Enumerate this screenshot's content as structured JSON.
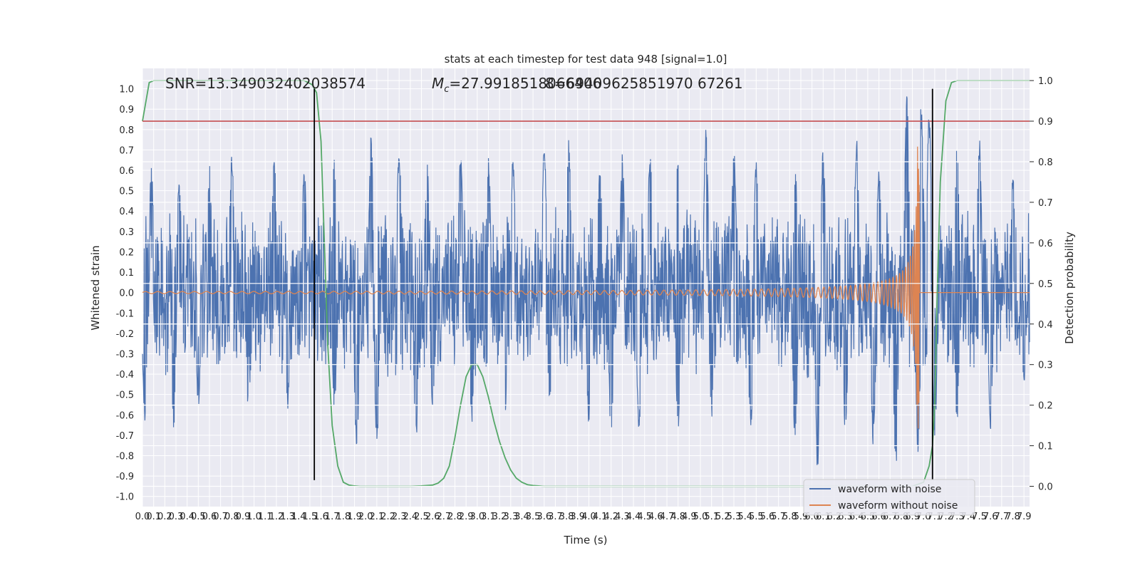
{
  "chart_data": {
    "type": "line",
    "title": "stats at each timestep for test data 948 [signal=1.0]",
    "xlabel": "Time (s)",
    "ylabel": "Whitened strain",
    "y2label": "Detection probability",
    "xlim": [
      0.0,
      7.95
    ],
    "ylim": [
      -1.05,
      1.1
    ],
    "y2lim": [
      -0.05,
      1.03
    ],
    "grid": true,
    "background": "#eaeaf2",
    "x_tick_labels": [
      "0.0",
      "0.1",
      "0.2",
      "0.3",
      "0.4",
      "0.5",
      "0.6",
      "0.7",
      "0.8",
      "0.9",
      "1.0",
      "1.1",
      "1.2",
      "1.3",
      "1.4",
      "1.5",
      "1.6",
      "1.7",
      "1.8",
      "1.9",
      "2.0",
      "2.1",
      "2.2",
      "2.3",
      "2.4",
      "2.5",
      "2.6",
      "2.7",
      "2.8",
      "2.9",
      "3.0",
      "3.1",
      "3.2",
      "3.3",
      "3.4",
      "3.5",
      "3.6",
      "3.7",
      "3.8",
      "3.9",
      "4.0",
      "4.1",
      "4.2",
      "4.3",
      "4.4",
      "4.5",
      "4.6",
      "4.7",
      "4.8",
      "4.9",
      "5.0",
      "5.1",
      "5.2",
      "5.3",
      "5.4",
      "5.5",
      "5.6",
      "5.7",
      "5.8",
      "5.9",
      "6.0",
      "6.1",
      "6.2",
      "6.3",
      "6.4",
      "6.5",
      "6.6",
      "6.7",
      "6.8",
      "6.9",
      "7.0",
      "7.1",
      "7.2",
      "7.3",
      "7.4",
      "7.5",
      "7.6",
      "7.7",
      "7.8",
      "7.9"
    ],
    "y_tick_labels": [
      "-1.0",
      "-0.9",
      "-0.8",
      "-0.7",
      "-0.6",
      "-0.5",
      "-0.4",
      "-0.3",
      "-0.2",
      "-0.1",
      "0.0",
      "0.1",
      "0.2",
      "0.3",
      "0.4",
      "0.5",
      "0.6",
      "0.7",
      "0.8",
      "0.9",
      "1.0"
    ],
    "y_tick_values": [
      -1.0,
      -0.9,
      -0.8,
      -0.7,
      -0.6,
      -0.5,
      -0.4,
      -0.3,
      -0.2,
      -0.1,
      0.0,
      0.1,
      0.2,
      0.3,
      0.4,
      0.5,
      0.6,
      0.7,
      0.8,
      0.9,
      1.0
    ],
    "y2_tick_labels": [
      "0.0",
      "0.1",
      "0.2",
      "0.3",
      "0.4",
      "0.5",
      "0.6",
      "0.7",
      "0.8",
      "0.9",
      "1.0"
    ],
    "y2_tick_values": [
      0.0,
      0.1,
      0.2,
      0.3,
      0.4,
      0.5,
      0.6,
      0.7,
      0.8,
      0.9,
      1.0
    ],
    "annotations": {
      "snr": "SNR=13.349032402038574",
      "mc_symbol": "M",
      "mc_subscript": "c",
      "mc_value": "=27.9918518066406",
      "overlap_value": "8=69409625851970 67261"
    },
    "series": [
      {
        "name": "waveform with noise",
        "color": "#4c72b0",
        "axis": "left",
        "description_stats": {
          "x_range": [
            0.0,
            7.95
          ],
          "typical_band": [
            -0.35,
            0.42
          ],
          "max_peak": 1.0,
          "min_trough": -0.92
        },
        "peaks": [
          [
            0.08,
            0.62
          ],
          [
            0.33,
            0.58
          ],
          [
            0.6,
            0.63
          ],
          [
            0.8,
            0.69
          ],
          [
            1.18,
            0.68
          ],
          [
            1.45,
            0.62
          ],
          [
            1.72,
            0.67
          ],
          [
            2.05,
            0.79
          ],
          [
            2.3,
            0.72
          ],
          [
            2.55,
            0.66
          ],
          [
            2.85,
            0.72
          ],
          [
            3.1,
            0.7
          ],
          [
            3.32,
            0.68
          ],
          [
            3.6,
            0.75
          ],
          [
            3.82,
            0.76
          ],
          [
            4.1,
            0.66
          ],
          [
            4.3,
            0.72
          ],
          [
            4.55,
            0.72
          ],
          [
            4.8,
            0.69
          ],
          [
            5.05,
            0.83
          ],
          [
            5.3,
            0.72
          ],
          [
            5.5,
            0.65
          ],
          [
            5.85,
            0.62
          ],
          [
            6.1,
            0.72
          ],
          [
            6.4,
            0.76
          ],
          [
            6.6,
            0.62
          ],
          [
            6.85,
            1.0
          ],
          [
            6.98,
            0.95
          ],
          [
            7.05,
            0.89
          ],
          [
            7.3,
            0.73
          ],
          [
            7.5,
            0.77
          ],
          [
            7.8,
            0.6
          ]
        ],
        "troughs": [
          [
            0.02,
            -0.64
          ],
          [
            0.28,
            -0.67
          ],
          [
            0.5,
            -0.58
          ],
          [
            0.95,
            -0.6
          ],
          [
            1.3,
            -0.58
          ],
          [
            1.72,
            -0.58
          ],
          [
            1.92,
            -0.83
          ],
          [
            2.1,
            -0.79
          ],
          [
            2.45,
            -0.77
          ],
          [
            2.6,
            -0.6
          ],
          [
            2.95,
            -0.68
          ],
          [
            3.25,
            -0.62
          ],
          [
            3.65,
            -0.58
          ],
          [
            4.0,
            -0.66
          ],
          [
            4.2,
            -0.75
          ],
          [
            4.45,
            -0.7
          ],
          [
            4.8,
            -0.7
          ],
          [
            5.1,
            -0.62
          ],
          [
            5.45,
            -0.7
          ],
          [
            5.85,
            -0.79
          ],
          [
            6.05,
            -0.89
          ],
          [
            6.3,
            -0.72
          ],
          [
            6.55,
            -0.76
          ],
          [
            6.75,
            -0.91
          ],
          [
            6.95,
            -0.82
          ],
          [
            7.1,
            -0.73
          ],
          [
            7.3,
            -0.65
          ],
          [
            7.6,
            -0.69
          ],
          [
            7.9,
            -0.45
          ]
        ]
      },
      {
        "name": "waveform without noise",
        "color": "#dd8452",
        "axis": "left",
        "chirp": {
          "start": 0.0,
          "end": 6.96,
          "start_amplitude": 0.005,
          "peak_amplitude": 0.72,
          "start_frequency": 9.0,
          "end_frequency": 300.0
        }
      },
      {
        "name": "detection probability",
        "color": "#55a868",
        "axis": "right",
        "x": [
          0.0,
          0.06,
          0.1,
          0.2,
          0.5,
          1.0,
          1.3,
          1.45,
          1.52,
          1.56,
          1.6,
          1.63,
          1.66,
          1.7,
          1.75,
          1.8,
          1.85,
          1.9,
          1.95,
          2.0,
          2.2,
          2.4,
          2.5,
          2.6,
          2.65,
          2.7,
          2.75,
          2.8,
          2.85,
          2.9,
          2.95,
          3.0,
          3.05,
          3.1,
          3.15,
          3.2,
          3.25,
          3.3,
          3.35,
          3.4,
          3.45,
          3.5,
          3.55,
          3.6,
          3.7,
          4.0,
          5.0,
          6.0,
          6.5,
          6.9,
          7.0,
          7.05,
          7.08,
          7.1,
          7.12,
          7.15,
          7.2,
          7.25,
          7.3,
          7.5,
          7.95
        ],
        "y": [
          0.9,
          0.995,
          1.0,
          1.0,
          1.0,
          1.0,
          1.0,
          1.0,
          0.99,
          0.97,
          0.85,
          0.6,
          0.35,
          0.15,
          0.05,
          0.01,
          0.003,
          0.001,
          0.0,
          0.0,
          0.0,
          0.0,
          0.001,
          0.003,
          0.008,
          0.02,
          0.05,
          0.12,
          0.2,
          0.27,
          0.3,
          0.3,
          0.27,
          0.22,
          0.16,
          0.11,
          0.07,
          0.04,
          0.02,
          0.01,
          0.004,
          0.002,
          0.001,
          0.0,
          0.0,
          0.0,
          0.0,
          0.0,
          0.0,
          0.0,
          0.01,
          0.05,
          0.1,
          0.2,
          0.45,
          0.75,
          0.95,
          0.995,
          1.0,
          1.0,
          1.0
        ]
      }
    ],
    "hlines": [
      {
        "axis": "right",
        "value": 0.9,
        "color": "#c44e52"
      }
    ],
    "vlines": [
      {
        "x": 1.54,
        "ymin": -0.92,
        "ymax": 1.0,
        "color": "#000000"
      },
      {
        "x": 7.08,
        "ymin": -0.92,
        "ymax": 1.0,
        "color": "#000000"
      }
    ],
    "legend": {
      "placement": "lower-right",
      "entries": [
        {
          "label": "waveform with noise",
          "color": "#4c72b0"
        },
        {
          "label": "waveform without noise",
          "color": "#dd8452"
        }
      ]
    }
  }
}
